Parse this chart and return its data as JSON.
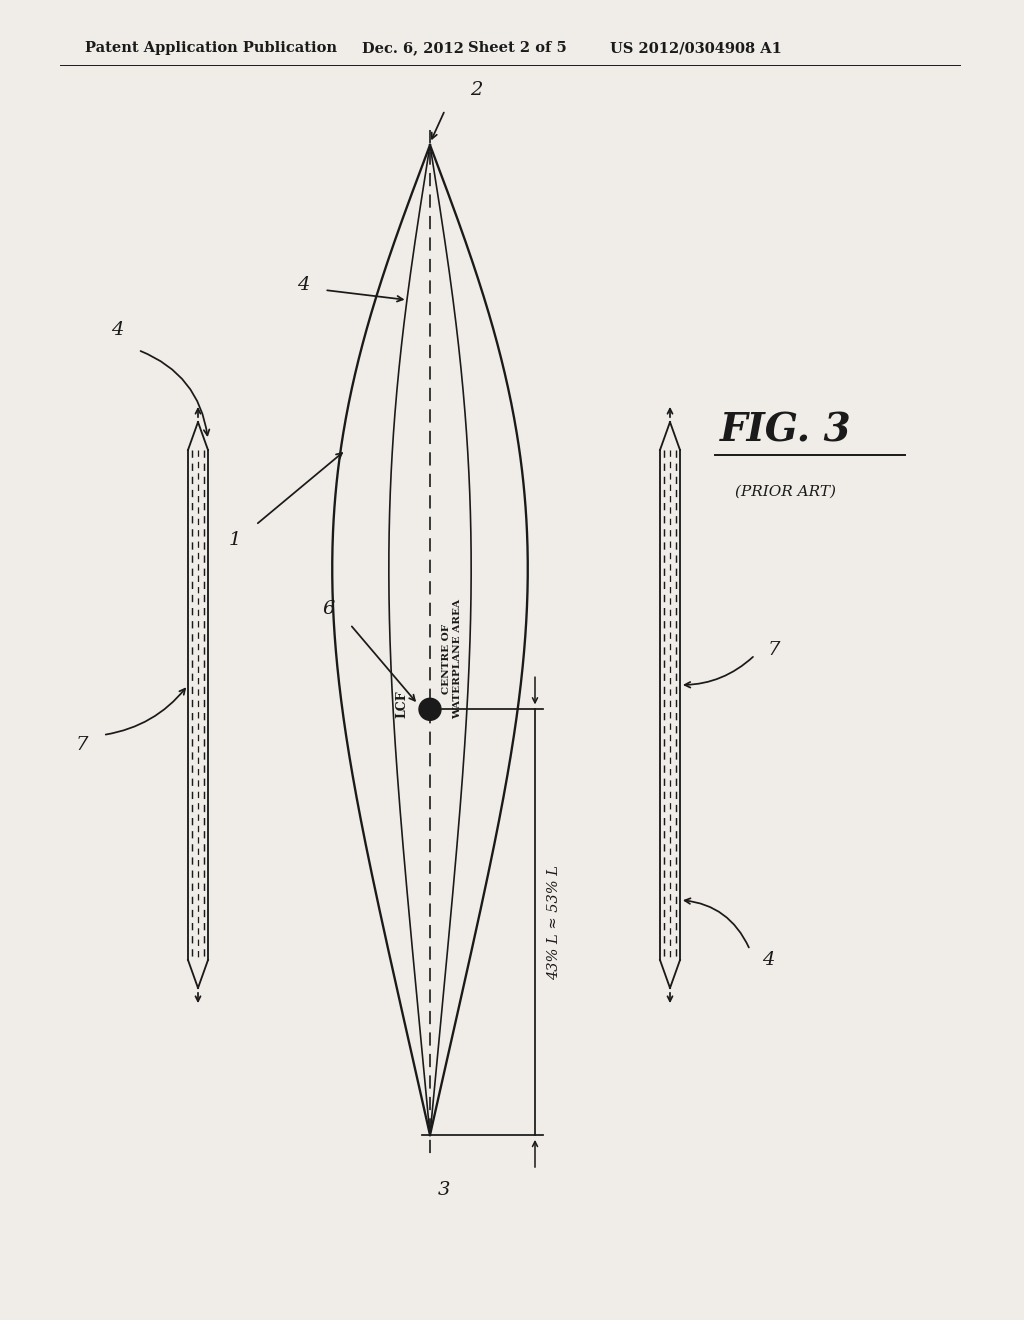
{
  "bg_color": "#f0ede8",
  "header_text": "Patent Application Publication",
  "header_date": "Dec. 6, 2012",
  "header_sheet": "Sheet 2 of 5",
  "header_patent": "US 2012/0304908 A1",
  "fig_label": "FIG. 3",
  "fig_sublabel": "(PRIOR ART)",
  "label_2": "2",
  "label_3": "3",
  "label_4": "4",
  "label_6": "6",
  "label_7": "7",
  "label_1": "1",
  "centre_text": "CENTRE OF\nWATERPLANE AREA",
  "lcf_text": "LCF",
  "dim_text": "43% L ≈ 53% L",
  "hull_color": "#1a1a1a",
  "line_width": 1.4
}
